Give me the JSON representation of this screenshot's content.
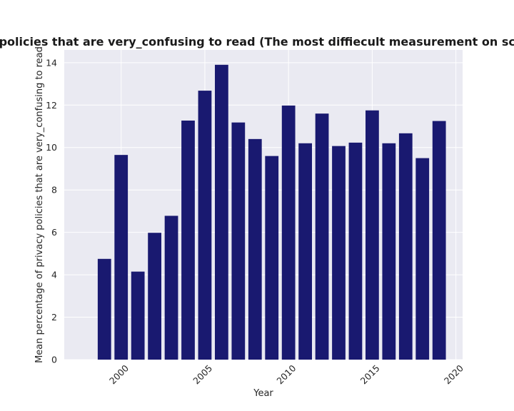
{
  "colors": {
    "bar": "#191970",
    "plot_background": "#eaeaf2",
    "grid": "#ffffff",
    "page_background": "#ffffff"
  },
  "chart_data": {
    "type": "bar",
    "title": "Mean percentage of privacy policies that are very_confusing to read (The most diffiecult measurement on scale) in privacy policies by Year",
    "xlabel": "Year",
    "ylabel": "Mean percentage of privacy policies that are very_confusing to read",
    "x": [
      1999,
      2000,
      2001,
      2002,
      2003,
      2004,
      2005,
      2006,
      2007,
      2008,
      2009,
      2010,
      2011,
      2012,
      2013,
      2014,
      2015,
      2016,
      2017,
      2018,
      2019
    ],
    "values": [
      4.75,
      9.65,
      4.15,
      5.98,
      6.78,
      11.27,
      12.68,
      13.9,
      11.18,
      10.4,
      9.6,
      11.98,
      10.2,
      11.6,
      10.07,
      10.23,
      11.75,
      10.2,
      10.67,
      9.5,
      11.25
    ],
    "xlim": [
      1996.6,
      2020.4
    ],
    "ylim": [
      0,
      14.6
    ],
    "xticks": [
      2000,
      2005,
      2010,
      2015,
      2020
    ],
    "yticks": [
      0,
      2,
      4,
      6,
      8,
      10,
      12,
      14
    ],
    "grid": true,
    "legend": "none"
  }
}
